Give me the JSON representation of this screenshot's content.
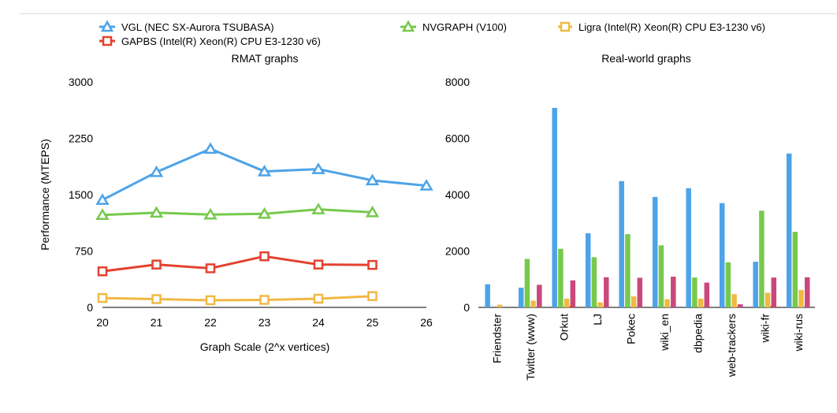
{
  "legend": [
    {
      "label": "VGL (NEC SX-Aurora TSUBASA)",
      "color": "#4da3e8",
      "marker": "triangle"
    },
    {
      "label": "NVGRAPH (V100)",
      "color": "#77c94c",
      "marker": "triangle"
    },
    {
      "label": "Ligra (Intel(R) Xeon(R) CPU E3-1230 v6)",
      "color": "#f0b944",
      "marker": "square"
    },
    {
      "label": "GAPBS (Intel(R) Xeon(R) CPU E3-1230 v6)",
      "color": "#e4412f",
      "marker": "square"
    }
  ],
  "chart_data": [
    {
      "type": "line",
      "title": "RMAT graphs",
      "xlabel": "Graph Scale (2^x vertices)",
      "ylabel": "Performance (MTEPS)",
      "x": [
        20,
        21,
        22,
        23,
        24,
        25,
        26
      ],
      "xticks": [
        "20",
        "21",
        "22",
        "23",
        "24",
        "25",
        "26"
      ],
      "ylim": [
        0,
        3000
      ],
      "yticks": [
        0,
        750,
        1500,
        2250,
        3000
      ],
      "ytick_labels": [
        "0",
        "750",
        "1500",
        "2250",
        "3000"
      ],
      "grid": false,
      "series": [
        {
          "name": "VGL (NEC SX-Aurora TSUBASA)",
          "color": "#4da3e8",
          "marker": "triangle",
          "values": [
            1430,
            1800,
            2110,
            1810,
            1840,
            1690,
            1620
          ]
        },
        {
          "name": "NVGRAPH (V100)",
          "color": "#77c94c",
          "marker": "triangle",
          "values": [
            1230,
            1260,
            1235,
            1245,
            1305,
            1265,
            null
          ]
        },
        {
          "name": "GAPBS (Intel(R) Xeon(R) CPU E3-1230 v6)",
          "color": "#e4412f",
          "marker": "square",
          "values": [
            480,
            570,
            520,
            680,
            570,
            565,
            null
          ]
        },
        {
          "name": "Ligra (Intel(R) Xeon(R) CPU E3-1230 v6)",
          "color": "#f0b944",
          "marker": "square",
          "values": [
            125,
            110,
            95,
            100,
            115,
            150,
            null
          ]
        }
      ]
    },
    {
      "type": "bar",
      "title": "Real-world graphs",
      "categories": [
        "Friendster",
        "Twitter (www)",
        "Orkut",
        "LJ",
        "Pokec",
        "wiki_en",
        "dbpedia",
        "web-trackers",
        "wiki-fr",
        "wiki-rus"
      ],
      "ylim": [
        0,
        8000
      ],
      "yticks": [
        0,
        2000,
        4000,
        6000,
        8000
      ],
      "ytick_labels": [
        "0",
        "2000",
        "4000",
        "6000",
        "8000"
      ],
      "grid": false,
      "series": [
        {
          "name": "VGL (NEC SX-Aurora TSUBASA)",
          "color": "#4da3e8",
          "values": [
            820,
            700,
            7080,
            2630,
            4480,
            3920,
            4230,
            3700,
            1620,
            5460
          ]
        },
        {
          "name": "NVGRAPH (V100)",
          "color": "#77c94c",
          "values": [
            0,
            1720,
            2080,
            1780,
            2600,
            2200,
            1060,
            1600,
            3430,
            2680
          ]
        },
        {
          "name": "Ligra (Intel(R) Xeon(R) CPU E3-1230 v6)",
          "color": "#f0b944",
          "values": [
            95,
            240,
            310,
            180,
            390,
            290,
            310,
            470,
            520,
            620
          ]
        },
        {
          "name": "GAPBS (Intel(R) Xeon(R) CPU E3-1230 v6)",
          "color": "#c9487c",
          "values": [
            0,
            800,
            960,
            1070,
            1050,
            1090,
            880,
            110,
            1060,
            1070
          ]
        }
      ],
      "extra_marks": [
        {
          "series_index": 3,
          "category_index": 2,
          "value": 60,
          "color": "#e4412f"
        },
        {
          "series_index": 3,
          "category_index": 8,
          "value": 60,
          "color": "#e4412f"
        }
      ]
    }
  ]
}
